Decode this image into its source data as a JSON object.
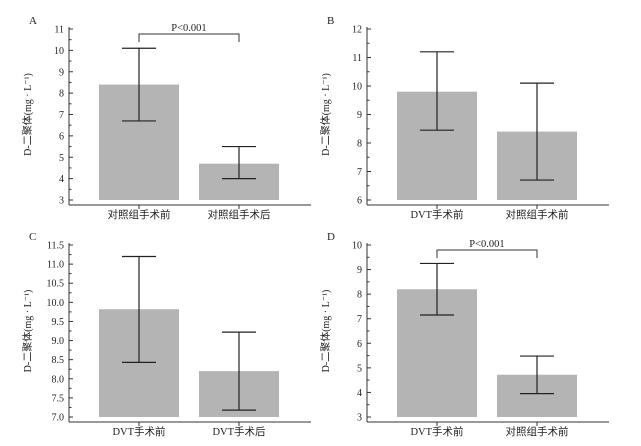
{
  "chart_data": [
    {
      "type": "bar",
      "panel_label": "A",
      "ylabel": "D-二聚体(mg · L⁻¹)",
      "categories": [
        "对照组手术前",
        "对照组手术后"
      ],
      "values": [
        8.4,
        4.7
      ],
      "error_low": [
        6.7,
        4.0
      ],
      "error_high": [
        10.1,
        5.5
      ],
      "ylim": [
        3,
        11
      ],
      "yticks": [
        "3",
        "4",
        "5",
        "6",
        "7",
        "8",
        "9",
        "10",
        "11"
      ],
      "annotation": "P<0.001",
      "grid": false,
      "bar_color": "#b4b4b4"
    },
    {
      "type": "bar",
      "panel_label": "B",
      "ylabel": "D-二聚体(mg · L⁻¹)",
      "categories": [
        "DVT手术前",
        "对照组手术前"
      ],
      "values": [
        9.8,
        8.4
      ],
      "error_low": [
        8.45,
        6.7
      ],
      "error_high": [
        11.2,
        10.1
      ],
      "ylim": [
        6,
        12
      ],
      "yticks": [
        "6",
        "7",
        "8",
        "9",
        "10",
        "11",
        "12"
      ],
      "annotation": "",
      "grid": false,
      "bar_color": "#b4b4b4"
    },
    {
      "type": "bar",
      "panel_label": "C",
      "ylabel": "D-二聚体(mg · L⁻¹)",
      "categories": [
        "DVT手术前",
        "DVT手术后"
      ],
      "values": [
        9.82,
        8.2
      ],
      "error_low": [
        8.43,
        7.18
      ],
      "error_high": [
        11.2,
        9.22
      ],
      "ylim": [
        7.0,
        11.5
      ],
      "yticks": [
        "7.0",
        "7.5",
        "8.0",
        "8.5",
        "9.0",
        "9.5",
        "10.0",
        "10.5",
        "11.0",
        "11.5"
      ],
      "annotation": "",
      "grid": false,
      "bar_color": "#b4b4b4"
    },
    {
      "type": "bar",
      "panel_label": "D",
      "ylabel": "D-二聚体(mg · L⁻¹)",
      "categories": [
        "DVT手术前",
        "对照组手术前"
      ],
      "values": [
        8.2,
        4.72
      ],
      "error_low": [
        7.15,
        3.95
      ],
      "error_high": [
        9.25,
        5.48
      ],
      "ylim": [
        3,
        10
      ],
      "yticks": [
        "3",
        "4",
        "5",
        "6",
        "7",
        "8",
        "9",
        "10"
      ],
      "annotation": "P<0.001",
      "grid": false,
      "bar_color": "#b4b4b4"
    }
  ]
}
